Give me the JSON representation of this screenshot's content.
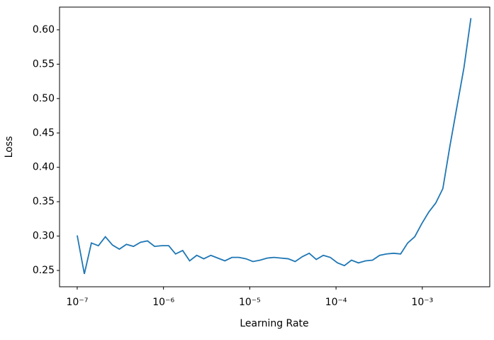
{
  "chart_data": {
    "type": "line",
    "xlabel": "Learning Rate",
    "ylabel": "Loss",
    "xscale": "log",
    "x": [
      1e-07,
      1.21e-07,
      1.46e-07,
      1.76e-07,
      2.12e-07,
      2.56e-07,
      3.08e-07,
      3.72e-07,
      4.49e-07,
      5.41e-07,
      6.53e-07,
      7.88e-07,
      9.51e-07,
      1.15e-06,
      1.38e-06,
      1.67e-06,
      2.01e-06,
      2.43e-06,
      2.93e-06,
      3.54e-06,
      4.27e-06,
      5.15e-06,
      6.21e-06,
      7.49e-06,
      9.04e-06,
      1.09e-05,
      1.32e-05,
      1.59e-05,
      1.91e-05,
      2.31e-05,
      2.79e-05,
      3.36e-05,
      4.06e-05,
      4.89e-05,
      5.9e-05,
      7.12e-05,
      8.59e-05,
      0.000104,
      0.000125,
      0.000151,
      0.000182,
      0.00022,
      0.000265,
      0.00032,
      0.000385,
      0.000465,
      0.000561,
      0.000677,
      0.000817,
      0.000985,
      0.00119,
      0.00143,
      0.00173,
      0.00209,
      0.00252,
      0.00304,
      0.00366
    ],
    "series": [
      {
        "color": "#1f77b4",
        "values": [
          0.301,
          0.245,
          0.29,
          0.286,
          0.299,
          0.287,
          0.281,
          0.288,
          0.285,
          0.291,
          0.293,
          0.285,
          0.286,
          0.286,
          0.274,
          0.279,
          0.264,
          0.272,
          0.267,
          0.272,
          0.268,
          0.264,
          0.269,
          0.269,
          0.267,
          0.263,
          0.265,
          0.268,
          0.269,
          0.268,
          0.267,
          0.263,
          0.27,
          0.275,
          0.266,
          0.272,
          0.269,
          0.261,
          0.257,
          0.265,
          0.261,
          0.264,
          0.265,
          0.272,
          0.274,
          0.275,
          0.274,
          0.29,
          0.299,
          0.318,
          0.335,
          0.348,
          0.369,
          0.431,
          0.488,
          0.545,
          0.617
        ]
      }
    ],
    "xlim": [
      6.24e-08,
      0.00605
    ],
    "xticks": [
      {
        "value": 1e-07,
        "label": "10⁻⁷"
      },
      {
        "value": 1e-06,
        "label": "10⁻⁶"
      },
      {
        "value": 1e-05,
        "label": "10⁻⁵"
      },
      {
        "value": 0.0001,
        "label": "10⁻⁴"
      },
      {
        "value": 0.001,
        "label": "10⁻³"
      }
    ],
    "ylim": [
      0.2263,
      0.633
    ],
    "yticks": [
      {
        "value": 0.25,
        "label": "0.25"
      },
      {
        "value": 0.3,
        "label": "0.30"
      },
      {
        "value": 0.35,
        "label": "0.35"
      },
      {
        "value": 0.4,
        "label": "0.40"
      },
      {
        "value": 0.45,
        "label": "0.45"
      },
      {
        "value": 0.5,
        "label": "0.50"
      },
      {
        "value": 0.55,
        "label": "0.55"
      },
      {
        "value": 0.6,
        "label": "0.60"
      }
    ]
  }
}
